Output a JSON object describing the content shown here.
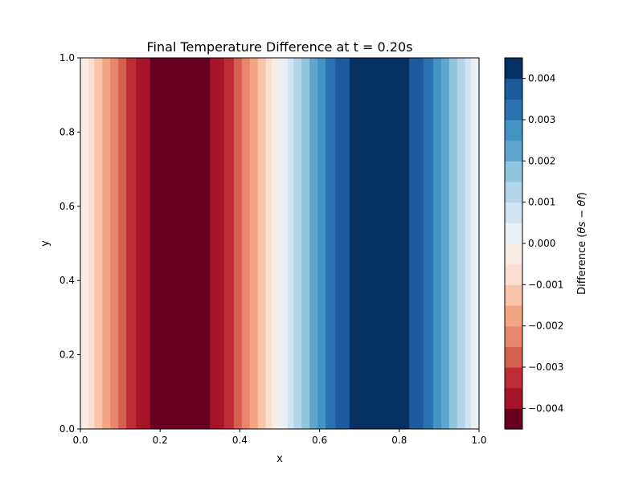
{
  "chart_data": {
    "type": "heatmap",
    "title": "Final Temperature Difference at t = 0.20s",
    "xlabel": "x",
    "ylabel": "y",
    "xlim": [
      0.0,
      1.0
    ],
    "ylim": [
      0.0,
      1.0
    ],
    "x_ticks": [
      "0.0",
      "0.2",
      "0.4",
      "0.6",
      "0.8",
      "1.0"
    ],
    "y_ticks": [
      "0.0",
      "0.2",
      "0.4",
      "0.6",
      "0.8",
      "1.0"
    ],
    "colorbar": {
      "label_prefix": "Difference (",
      "label_math": "θs − θf",
      "label_suffix": ")",
      "vmin": -0.0045,
      "vmax": 0.0045,
      "levels": 18,
      "tick_values": [
        -0.004,
        -0.003,
        -0.002,
        -0.001,
        0.0,
        0.001,
        0.002,
        0.003,
        0.004
      ],
      "tick_labels": [
        "−0.004",
        "−0.003",
        "−0.002",
        "−0.001",
        "0.000",
        "0.001",
        "0.002",
        "0.003",
        "0.004"
      ],
      "colors": [
        "#67001f",
        "#a51429",
        "#c02c35",
        "#d4604e",
        "#e7876d",
        "#f4a582",
        "#f9c4a9",
        "#fbdfd0",
        "#f7ede6",
        "#e9f1f6",
        "#d1e5f0",
        "#b2d5e8",
        "#92c5de",
        "#5fa5cd",
        "#4393c3",
        "#2c72b2",
        "#1d5a9e",
        "#053061"
      ]
    },
    "field": {
      "description_of_function": "difference = -0.0045 * sin(2*pi*x), constant in y",
      "amplitude": -0.0045,
      "x_samples": 200
    },
    "grid": false
  }
}
